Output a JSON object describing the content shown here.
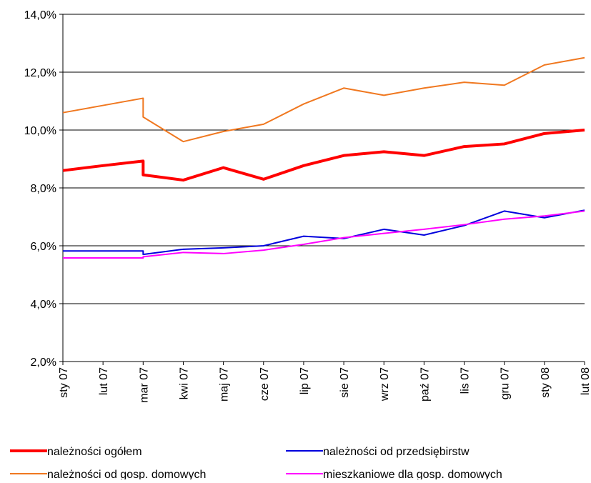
{
  "chart_data": {
    "type": "line",
    "x": [
      0,
      1,
      2,
      2,
      3,
      4,
      5,
      6,
      7,
      8,
      9,
      10,
      11,
      12,
      13
    ],
    "xlim": [
      0,
      13
    ],
    "xticks": [
      {
        "value": 0,
        "label": "sty 07"
      },
      {
        "value": 1,
        "label": "lut 07"
      },
      {
        "value": 2,
        "label": "mar 07"
      },
      {
        "value": 3,
        "label": "kwi 07"
      },
      {
        "value": 4,
        "label": "maj 07"
      },
      {
        "value": 5,
        "label": "cze 07"
      },
      {
        "value": 6,
        "label": "lip 07"
      },
      {
        "value": 7,
        "label": "sie 07"
      },
      {
        "value": 8,
        "label": "wrz 07"
      },
      {
        "value": 9,
        "label": "paź 07"
      },
      {
        "value": 10,
        "label": "lis 07"
      },
      {
        "value": 11,
        "label": "gru 07"
      },
      {
        "value": 12,
        "label": "sty 08"
      },
      {
        "value": 13,
        "label": "lut 08"
      }
    ],
    "ylim": [
      2,
      14
    ],
    "yticks": [
      {
        "value": 2,
        "label": "2,0%"
      },
      {
        "value": 4,
        "label": "4,0%"
      },
      {
        "value": 6,
        "label": "6,0%"
      },
      {
        "value": 8,
        "label": "8,0%"
      },
      {
        "value": 10,
        "label": "10,0%"
      },
      {
        "value": 12,
        "label": "12,0%"
      },
      {
        "value": 14,
        "label": "14,0%"
      }
    ],
    "grid": true,
    "series": [
      {
        "name": "należności ogółem",
        "color": "#ff0000",
        "width": 4,
        "values": [
          8.6,
          8.77,
          8.93,
          8.45,
          8.27,
          8.7,
          8.3,
          8.77,
          9.12,
          9.25,
          9.12,
          9.43,
          9.52,
          9.88,
          10.0
        ]
      },
      {
        "name": "należności od przedsiębirstw",
        "color": "#0000dd",
        "width": 2,
        "values": [
          5.82,
          5.82,
          5.82,
          5.7,
          5.88,
          5.93,
          6.0,
          6.33,
          6.25,
          6.57,
          6.37,
          6.7,
          7.2,
          6.97,
          7.23
        ]
      },
      {
        "name": "należności od gosp. domowych",
        "color": "#f07820",
        "width": 2,
        "values": [
          10.6,
          10.85,
          11.1,
          10.45,
          9.6,
          9.95,
          10.2,
          10.9,
          11.45,
          11.2,
          11.45,
          11.65,
          11.55,
          12.25,
          12.5
        ]
      },
      {
        "name": "mieszkaniowe dla gosp. domowych",
        "color": "#ff00ff",
        "width": 2,
        "values": [
          5.58,
          5.58,
          5.58,
          5.62,
          5.77,
          5.73,
          5.85,
          6.05,
          6.28,
          6.43,
          6.57,
          6.73,
          6.92,
          7.03,
          7.2
        ]
      }
    ]
  }
}
